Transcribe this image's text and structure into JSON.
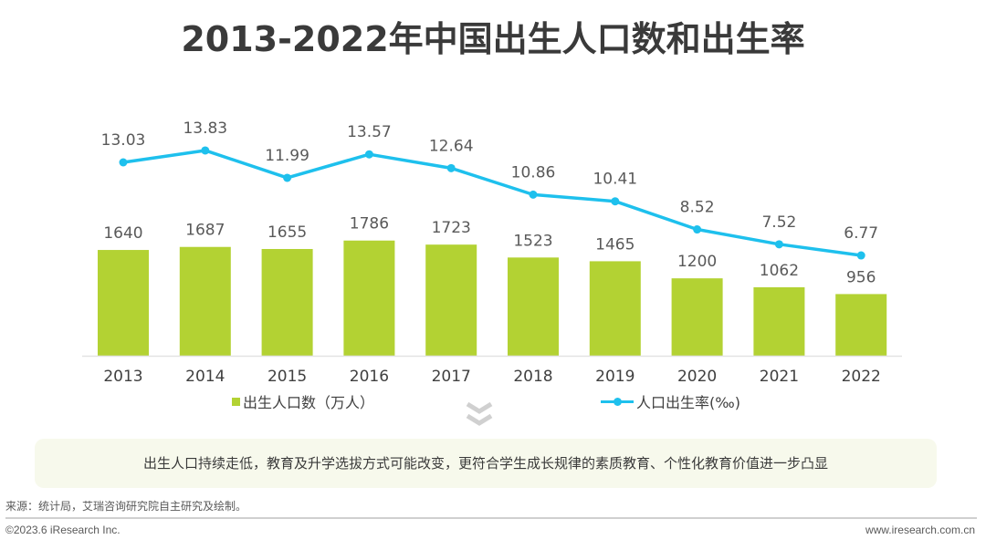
{
  "title": "2013-2022年中国出生人口数和出生率",
  "chart_data": {
    "type": "bar+line",
    "title": "2013-2022年中国出生人口数和出生率",
    "categories": [
      "2013",
      "2014",
      "2015",
      "2016",
      "2017",
      "2018",
      "2019",
      "2020",
      "2021",
      "2022"
    ],
    "series": [
      {
        "name": "出生人口数（万人）",
        "type": "bar",
        "axis": "left",
        "values": [
          1640,
          1687,
          1655,
          1786,
          1723,
          1523,
          1465,
          1200,
          1062,
          956
        ],
        "labels": [
          "1640",
          "1687",
          "1655",
          "1786",
          "1723",
          "1523",
          "1465",
          "1200",
          "1062",
          "956"
        ]
      },
      {
        "name": "人口出生率(‰)",
        "type": "line",
        "axis": "right",
        "values": [
          13.03,
          13.83,
          11.99,
          13.57,
          12.64,
          10.86,
          10.41,
          8.52,
          7.52,
          6.77
        ],
        "labels": [
          "13.03",
          "13.83",
          "11.99",
          "13.57",
          "12.64",
          "10.86",
          "10.41",
          "8.52",
          "7.52",
          "6.77"
        ]
      }
    ],
    "xlabel": "",
    "ylabel": "",
    "grid": false,
    "legend_position": "bottom",
    "colors": {
      "bar": "#b3d233",
      "line": "#1ec0ed"
    }
  },
  "legend": {
    "bar_label": "出生人口数（万人）",
    "line_label": "人口出生率(‰)"
  },
  "summary": "出生人口持续走低，教育及升学选拔方式可能改变，更符合学生成长规律的素质教育、个性化教育价值进一步凸显",
  "footer": {
    "source": "来源：统计局，艾瑞咨询研究院自主研究及绘制。",
    "copyright": "©2023.6 iResearch Inc.",
    "website": "www.iresearch.com.cn"
  }
}
